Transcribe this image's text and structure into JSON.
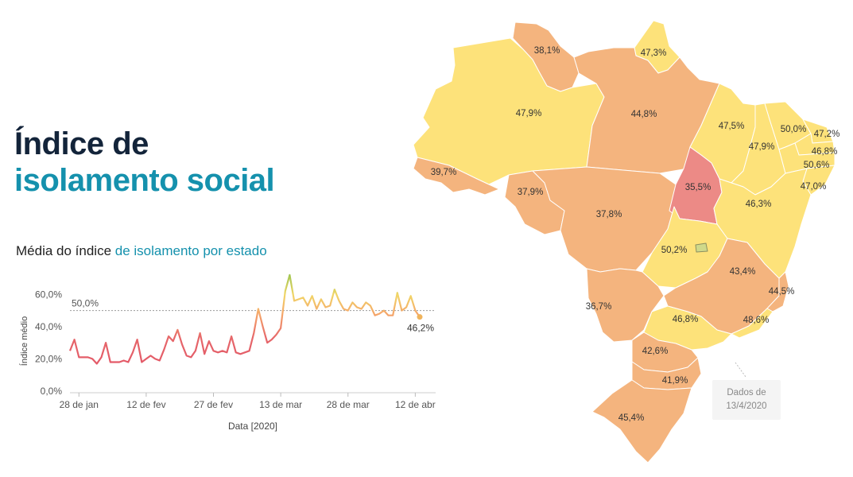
{
  "title": {
    "line1": "Índice de",
    "line2": "isolamento social"
  },
  "subtitle": {
    "part1": "Média do índice ",
    "part2": "de isolamento por estado"
  },
  "colors": {
    "title_dark": "#13243a",
    "accent": "#1591ad",
    "low": "#e05a6a",
    "mid": "#f3a96b",
    "high": "#9ac64a",
    "map_high": "#fde27a",
    "map_mid": "#f4b47e",
    "map_low": "#ec8a86"
  },
  "chart_data": {
    "type": "line",
    "xlabel": "Data [2020]",
    "ylabel": "Índice médio",
    "x_ticks": [
      "28 de jan",
      "12 de fev",
      "27 de fev",
      "13 de mar",
      "28 de mar",
      "12 de abr"
    ],
    "y_ticks": [
      "0,0%",
      "20,0%",
      "40,0%",
      "60,0%"
    ],
    "ylim": [
      0,
      70
    ],
    "reference_line": {
      "value": 50,
      "label": "50,0%"
    },
    "last_label": "46,2%",
    "series": [
      {
        "x": [
          "2020-01-26",
          "2020-01-27",
          "2020-01-28",
          "2020-01-29",
          "2020-01-30",
          "2020-01-31",
          "2020-02-01",
          "2020-02-02",
          "2020-02-03",
          "2020-02-04",
          "2020-02-05",
          "2020-02-06",
          "2020-02-07",
          "2020-02-08",
          "2020-02-09",
          "2020-02-10",
          "2020-02-11",
          "2020-02-12",
          "2020-02-13",
          "2020-02-14",
          "2020-02-15",
          "2020-02-16",
          "2020-02-17",
          "2020-02-18",
          "2020-02-19",
          "2020-02-20",
          "2020-02-21",
          "2020-02-22",
          "2020-02-23",
          "2020-02-24",
          "2020-02-25",
          "2020-02-26",
          "2020-02-27",
          "2020-02-28",
          "2020-02-29",
          "2020-03-01",
          "2020-03-02",
          "2020-03-03",
          "2020-03-04",
          "2020-03-05",
          "2020-03-06",
          "2020-03-07",
          "2020-03-08",
          "2020-03-09",
          "2020-03-10",
          "2020-03-11",
          "2020-03-12",
          "2020-03-13",
          "2020-03-14",
          "2020-03-15",
          "2020-03-16",
          "2020-03-17",
          "2020-03-18",
          "2020-03-19",
          "2020-03-20",
          "2020-03-21",
          "2020-03-22",
          "2020-03-23",
          "2020-03-24",
          "2020-03-25",
          "2020-03-26",
          "2020-03-27",
          "2020-03-28",
          "2020-03-29",
          "2020-03-30",
          "2020-03-31",
          "2020-04-01",
          "2020-04-02",
          "2020-04-03",
          "2020-04-04",
          "2020-04-05",
          "2020-04-06",
          "2020-04-07",
          "2020-04-08",
          "2020-04-09",
          "2020-04-10",
          "2020-04-11",
          "2020-04-12",
          "2020-04-13"
        ],
        "y": [
          25,
          32,
          21,
          21,
          21,
          20,
          17,
          21,
          30,
          18,
          18,
          18,
          19,
          18,
          24,
          32,
          18,
          20,
          22,
          20,
          19,
          26,
          34,
          31,
          38,
          29,
          22,
          21,
          25,
          36,
          23,
          31,
          25,
          24,
          25,
          24,
          34,
          24,
          23,
          24,
          25,
          36,
          51,
          40,
          30,
          32,
          35,
          39,
          62,
          72,
          56,
          57,
          58,
          53,
          59,
          51,
          57,
          52,
          53,
          63,
          56,
          51,
          50,
          55,
          52,
          51,
          55,
          53,
          47,
          48,
          50,
          47,
          47,
          61,
          50,
          52,
          59,
          50,
          46
        ]
      }
    ]
  },
  "map": {
    "source_label_line1": "Dados de",
    "source_label_line2": "13/4/2020",
    "states": [
      {
        "uf": "RR",
        "value": "38,1%"
      },
      {
        "uf": "AP",
        "value": "47,3%"
      },
      {
        "uf": "AM",
        "value": "47,9%"
      },
      {
        "uf": "PA",
        "value": "44,8%"
      },
      {
        "uf": "MA",
        "value": "47,5%"
      },
      {
        "uf": "CE",
        "value": "50,0%"
      },
      {
        "uf": "RN",
        "value": "47,2%"
      },
      {
        "uf": "PB",
        "value": "46,8%"
      },
      {
        "uf": "PE",
        "value": "50,6%"
      },
      {
        "uf": "PI",
        "value": "47,9%"
      },
      {
        "uf": "AL",
        "value": "47,0%"
      },
      {
        "uf": "AC",
        "value": "39,7%"
      },
      {
        "uf": "RO",
        "value": "37,9%"
      },
      {
        "uf": "MT",
        "value": "37,8%"
      },
      {
        "uf": "TO",
        "value": "35,5%"
      },
      {
        "uf": "BA",
        "value": "46,3%"
      },
      {
        "uf": "GO",
        "value": "50,2%"
      },
      {
        "uf": "MG",
        "value": "43,4%"
      },
      {
        "uf": "ES",
        "value": "44,5%"
      },
      {
        "uf": "MS",
        "value": "36,7%"
      },
      {
        "uf": "SP",
        "value": "46,8%"
      },
      {
        "uf": "RJ",
        "value": "48,6%"
      },
      {
        "uf": "PR",
        "value": "42,6%"
      },
      {
        "uf": "SC",
        "value": "41,9%"
      },
      {
        "uf": "RS",
        "value": "45,4%"
      }
    ]
  }
}
